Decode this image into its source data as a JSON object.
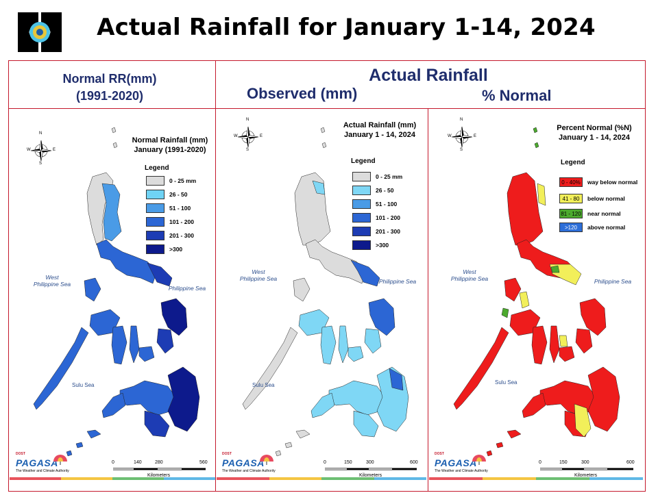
{
  "header": {
    "title": "Actual Rainfall for January 1-14, 2024"
  },
  "columns": {
    "normal_header_line1": "Normal RR(mm)",
    "normal_header_line2": "(1991-2020)",
    "actual_header": "Actual Rainfall",
    "observed_header": "Observed (mm)",
    "percent_header": "% Normal"
  },
  "panels": [
    {
      "id": "normal",
      "title_line1": "Normal Rainfall (mm)",
      "title_line2": "January (1991-2020)",
      "legend_title": "Legend",
      "legend": [
        {
          "label": "0 - 25 mm",
          "color": "#dcdcdc"
        },
        {
          "label": "26 - 50",
          "color": "#6fd3f5"
        },
        {
          "label": "51 - 100",
          "color": "#4a9be6"
        },
        {
          "label": "101 - 200",
          "color": "#2c66d4"
        },
        {
          "label": "201 - 300",
          "color": "#1d3cb4"
        },
        {
          "label": ">300",
          "color": "#0d1a8c"
        }
      ],
      "scale": [
        "0",
        "140",
        "280",
        "560"
      ],
      "km_label": "Kilometers"
    },
    {
      "id": "observed",
      "title_line1": "Actual Rainfall (mm)",
      "title_line2": "January 1 - 14, 2024",
      "legend_title": "Legend",
      "legend": [
        {
          "label": "0 - 25 mm",
          "color": "#dcdcdc"
        },
        {
          "label": "26 - 50",
          "color": "#7fd7f5"
        },
        {
          "label": "51 - 100",
          "color": "#4a9be6"
        },
        {
          "label": "101 - 200",
          "color": "#2c66d4"
        },
        {
          "label": "201 - 300",
          "color": "#1d3cb4"
        },
        {
          "label": ">300",
          "color": "#0d1a8c"
        }
      ],
      "scale": [
        "0",
        "150",
        "300",
        "600"
      ],
      "km_label": "Kilometers"
    },
    {
      "id": "percent",
      "title_line1": "Percent Normal (%N)",
      "title_line2": "January 1 - 14, 2024",
      "legend_title": "Legend",
      "legend": [
        {
          "swatch": "0 - 40%",
          "label": "way below normal",
          "color": "#ee1c1c"
        },
        {
          "swatch": "41 - 80",
          "label": "below normal",
          "color": "#f2ef5a"
        },
        {
          "swatch": "81 - 120",
          "label": "near normal",
          "color": "#4caa2e"
        },
        {
          "swatch": ">120",
          "label": "above normal",
          "color": "#2d6ed8"
        }
      ],
      "scale": [
        "0",
        "150",
        "300",
        "600"
      ],
      "km_label": "Kilometers"
    }
  ],
  "map_labels": {
    "west_sea_line1": "West",
    "west_sea_line2": "Philippine Sea",
    "philippine_sea": "Philippine Sea",
    "sulu_sea": "Sulu Sea"
  },
  "compass": {
    "n": "N",
    "s": "S",
    "e": "E",
    "w": "W"
  },
  "pagasa_logo": {
    "dost": "DOST",
    "name": "PAGASA",
    "tagline": "The Weather and Climate Authority"
  },
  "map_colors": {
    "normal": {
      "luzon_north": "#dcdcdc",
      "luzon": "#4a9be6",
      "visayas": "#2c66d4",
      "mindanao": "#1d3cb4",
      "east": "#0d1a8c"
    },
    "observed": {
      "luzon": "#dcdcdc",
      "visayas": "#7fd7f5",
      "mindanao": "#7fd7f5",
      "east": "#2c66d4"
    },
    "percent": {
      "main": "#ee1c1c",
      "below": "#f2ef5a",
      "near": "#4caa2e"
    }
  },
  "footer_colors": [
    "#e8545c",
    "#f4c542",
    "#6dbf73",
    "#5fb8e6"
  ]
}
